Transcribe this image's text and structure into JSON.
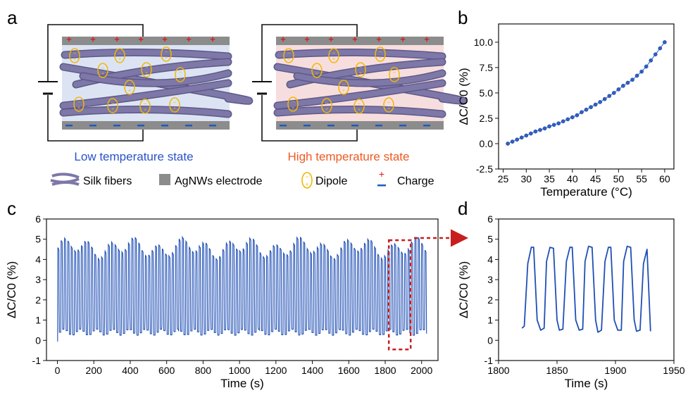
{
  "panels": {
    "a": "a",
    "b": "b",
    "c": "c",
    "d": "d"
  },
  "schematic": {
    "low_label": "Low temperature state",
    "high_label": "High temperature state",
    "legend": {
      "silk": "Silk fibers",
      "electrode": "AgNWs electrode",
      "dipole": "Dipole",
      "charge": "Charge"
    },
    "colors": {
      "low_bg": "#dce4f4",
      "high_bg": "#f7dede",
      "fiber": "#7d78a8",
      "electrode": "#8c8c8c",
      "dipole": "#f2b705",
      "plus": "#d22020",
      "minus": "#1f5bc0",
      "low_text": "#2a52c9",
      "high_text": "#ee5a24"
    }
  },
  "chart_data": [
    {
      "panel": "b",
      "type": "scatter",
      "xlabel": "Temperature (°C)",
      "ylabel": "ΔC/C0 (%)",
      "xlim": [
        24,
        62
      ],
      "ylim": [
        -2.5,
        11.8
      ],
      "xticks": [
        "25",
        "30",
        "35",
        "40",
        "45",
        "50",
        "55",
        "60"
      ],
      "yticks": [
        "-2.5",
        "0.0",
        "2.5",
        "5.0",
        "7.5",
        "10.0"
      ],
      "x": [
        26,
        27,
        28,
        29,
        30,
        31,
        32,
        33,
        34,
        35,
        36,
        37,
        38,
        39,
        40,
        41,
        42,
        43,
        44,
        45,
        46,
        47,
        48,
        49,
        50,
        51,
        52,
        53,
        54,
        55,
        56,
        57,
        58,
        59,
        60
      ],
      "y": [
        0.0,
        0.2,
        0.4,
        0.6,
        0.8,
        1.0,
        1.2,
        1.35,
        1.5,
        1.7,
        1.85,
        2.0,
        2.2,
        2.4,
        2.6,
        2.8,
        3.1,
        3.35,
        3.6,
        3.85,
        4.1,
        4.4,
        4.7,
        5.0,
        5.35,
        5.7,
        6.0,
        6.3,
        6.7,
        7.1,
        7.6,
        8.2,
        8.8,
        9.4,
        10.0
      ],
      "color": "#2f5fc4"
    },
    {
      "panel": "c",
      "type": "line",
      "xlabel": "Time (s)",
      "ylabel": "ΔC/C0 (%)",
      "xlim": [
        -60,
        2090
      ],
      "ylim": [
        -1,
        6
      ],
      "xticks": [
        "0",
        "200",
        "400",
        "600",
        "800",
        "1000",
        "1200",
        "1400",
        "1600",
        "1800",
        "2000"
      ],
      "yticks": [
        "-1",
        "0",
        "1",
        "2",
        "3",
        "4",
        "5",
        "6"
      ],
      "period_s": 18.5,
      "time_range": [
        0,
        2030
      ],
      "baseline": 0.4,
      "peak": 4.6,
      "color": "#1f4fb5",
      "annotation": "dashed zoom box 1820–1940 s, arrow to panel d"
    },
    {
      "panel": "d",
      "type": "line",
      "xlabel": "Time (s)",
      "ylabel": "ΔC/C0 (%)",
      "xlim": [
        1800,
        1950
      ],
      "ylim": [
        -1,
        6
      ],
      "xticks": [
        "1800",
        "1850",
        "1900",
        "1950"
      ],
      "yticks": [
        "-1",
        "0",
        "1",
        "2",
        "3",
        "4",
        "5",
        "6"
      ],
      "series": [
        {
          "x": [
            1820,
            1822,
            1825,
            1828,
            1830,
            1833,
            1836,
            1839,
            1841,
            1844,
            1847,
            1850,
            1852,
            1855,
            1858,
            1861,
            1863,
            1866,
            1869,
            1872,
            1874,
            1877,
            1880,
            1883,
            1885,
            1888,
            1891,
            1894,
            1896,
            1899,
            1902,
            1905,
            1907,
            1910,
            1913,
            1916,
            1918,
            1921,
            1924,
            1927,
            1930
          ],
          "y": [
            0.6,
            0.7,
            3.8,
            4.6,
            4.6,
            1.0,
            0.5,
            0.6,
            3.9,
            4.6,
            4.55,
            1.0,
            0.5,
            0.55,
            3.9,
            4.6,
            4.6,
            1.0,
            0.5,
            0.55,
            3.9,
            4.65,
            4.6,
            1.0,
            0.4,
            0.5,
            3.9,
            4.6,
            4.6,
            1.0,
            0.5,
            0.5,
            3.9,
            4.65,
            4.6,
            1.0,
            0.45,
            0.5,
            3.8,
            4.5,
            0.45
          ]
        }
      ],
      "color": "#1f4fb5"
    }
  ]
}
